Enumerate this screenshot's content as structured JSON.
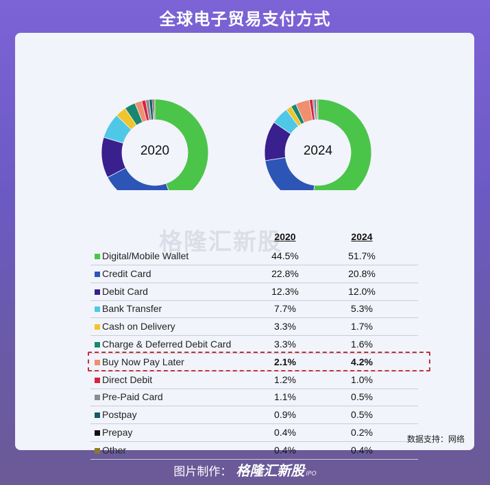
{
  "header": {
    "title": "全球电子贸易支付方式"
  },
  "colors": {
    "Digital/Mobile Wallet": "#4bc44a",
    "Credit Card": "#2d55b5",
    "Debit Card": "#3a1f8e",
    "Bank Transfer": "#4fc8e8",
    "Cash on Delivery": "#efc52d",
    "Charge & Deferred Debit Card": "#18876e",
    "Buy Now Pay Later": "#ef8f6f",
    "Direct Debit": "#d8233f",
    "Pre-Paid Card": "#8d8d8d",
    "Postpay": "#155a6a",
    "Prepay": "#111111",
    "Other": "#8a7a2a",
    "highlight_border": "#c0303a"
  },
  "chart_data": {
    "type": "pie",
    "donut_labels": [
      "2020",
      "2024"
    ],
    "column_headers": [
      "2020",
      "2024"
    ],
    "categories": [
      "Digital/Mobile Wallet",
      "Credit Card",
      "Debit Card",
      "Bank Transfer",
      "Cash on Delivery",
      "Charge & Deferred Debit Card",
      "Buy Now Pay Later",
      "Direct Debit",
      "Pre-Paid Card",
      "Postpay",
      "Prepay",
      "Other"
    ],
    "series": [
      {
        "name": "2020",
        "values": [
          44.5,
          22.8,
          12.3,
          7.7,
          3.3,
          3.3,
          2.1,
          1.2,
          1.1,
          0.9,
          0.4,
          0.4
        ]
      },
      {
        "name": "2024",
        "values": [
          51.7,
          20.8,
          12.0,
          5.3,
          1.7,
          1.6,
          4.2,
          1.0,
          0.5,
          0.5,
          0.2,
          0.4
        ]
      }
    ],
    "value_labels_2020": [
      "44.5%",
      "22.8%",
      "12.3%",
      "7.7%",
      "3.3%",
      "3.3%",
      "2.1%",
      "1.2%",
      "1.1%",
      "0.9%",
      "0.4%",
      "0.4%"
    ],
    "value_labels_2024": [
      "51.7%",
      "20.8%",
      "12.0%",
      "5.3%",
      "1.7%",
      "1.6%",
      "4.2%",
      "1.0%",
      "0.5%",
      "0.5%",
      "0.2%",
      "0.4%"
    ],
    "highlighted_category": "Buy Now Pay Later"
  },
  "watermark": "格隆汇新股",
  "source": "数据支持：网络",
  "footer": {
    "prefix": "图片制作：",
    "brand": "格隆汇新股",
    "suffix": "IPO"
  }
}
